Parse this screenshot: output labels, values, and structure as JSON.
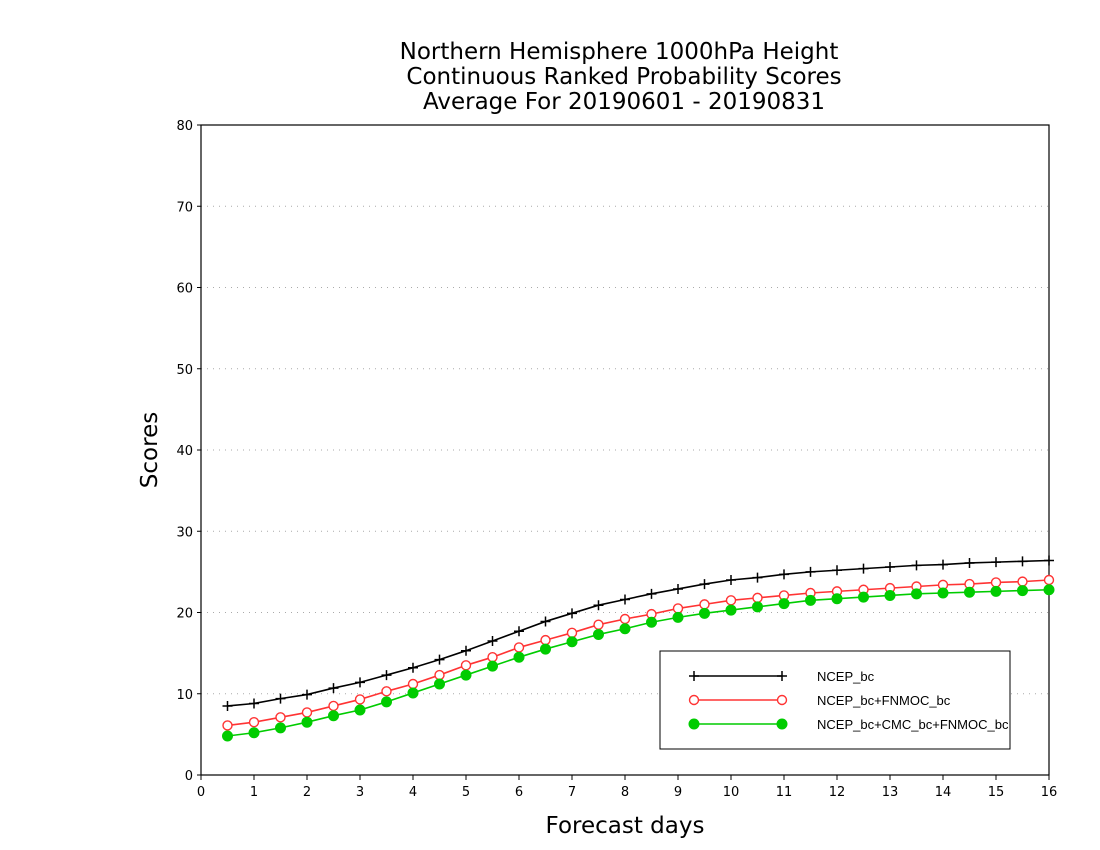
{
  "chart_data": {
    "type": "line",
    "title_lines": [
      "Northern Hemisphere 1000hPa Height",
      "Continuous Ranked Probability Scores",
      "Average For 20190601 - 20190831"
    ],
    "xlabel": "Forecast days",
    "ylabel": "Scores",
    "xlim": [
      0,
      16
    ],
    "ylim": [
      0,
      80
    ],
    "xticks": [
      0,
      1,
      2,
      3,
      4,
      5,
      6,
      7,
      8,
      9,
      10,
      11,
      12,
      13,
      14,
      15,
      16
    ],
    "yticks": [
      0,
      10,
      20,
      30,
      40,
      50,
      60,
      70,
      80
    ],
    "grid": "horizontal dotted",
    "legend_position": "bottom-right",
    "x": [
      0.5,
      1,
      1.5,
      2,
      2.5,
      3,
      3.5,
      4,
      4.5,
      5,
      5.5,
      6,
      6.5,
      7,
      7.5,
      8,
      8.5,
      9,
      9.5,
      10,
      10.5,
      11,
      11.5,
      12,
      12.5,
      13,
      13.5,
      14,
      14.5,
      15,
      15.5,
      16
    ],
    "series": [
      {
        "name": "NCEP_bc",
        "color": "#000000",
        "marker": "plus",
        "values": [
          8.5,
          8.8,
          9.4,
          9.9,
          10.7,
          11.4,
          12.3,
          13.2,
          14.2,
          15.3,
          16.5,
          17.7,
          18.9,
          19.9,
          20.9,
          21.6,
          22.3,
          22.9,
          23.5,
          24.0,
          24.3,
          24.7,
          25.0,
          25.2,
          25.4,
          25.6,
          25.8,
          25.9,
          26.1,
          26.2,
          26.3,
          26.4
        ]
      },
      {
        "name": "NCEP_bc+FNMOC_bc",
        "color": "#ff3333",
        "marker": "open-circle",
        "values": [
          6.1,
          6.5,
          7.1,
          7.7,
          8.5,
          9.3,
          10.3,
          11.2,
          12.3,
          13.5,
          14.5,
          15.7,
          16.6,
          17.5,
          18.5,
          19.2,
          19.8,
          20.5,
          21.0,
          21.5,
          21.8,
          22.1,
          22.4,
          22.6,
          22.8,
          23.0,
          23.2,
          23.4,
          23.5,
          23.7,
          23.8,
          24.0
        ]
      },
      {
        "name": "NCEP_bc+CMC_bc+FNMOC_bc",
        "color": "#00cc00",
        "marker": "filled-circle",
        "values": [
          4.8,
          5.2,
          5.8,
          6.5,
          7.3,
          8.0,
          9.0,
          10.1,
          11.2,
          12.3,
          13.4,
          14.5,
          15.5,
          16.4,
          17.3,
          18.0,
          18.8,
          19.4,
          19.9,
          20.3,
          20.7,
          21.1,
          21.5,
          21.7,
          21.9,
          22.1,
          22.3,
          22.4,
          22.5,
          22.6,
          22.7,
          22.8
        ]
      }
    ]
  }
}
